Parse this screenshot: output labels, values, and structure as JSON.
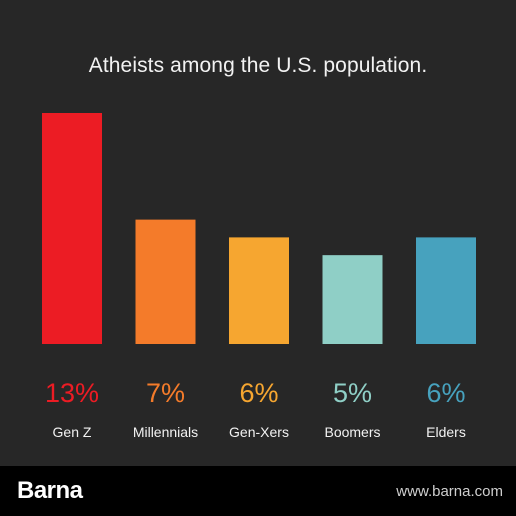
{
  "header": {
    "title": "Atheists among the U.S. population."
  },
  "footer": {
    "brand": "Barna",
    "url": "www.barna.com"
  },
  "chart_data": {
    "type": "bar",
    "title": "Atheists among the U.S. population.",
    "categories": [
      "Gen Z",
      "Millennials",
      "Gen-Xers",
      "Boomers",
      "Elders"
    ],
    "values": [
      13,
      7,
      6,
      5,
      6
    ],
    "value_labels": [
      "13%",
      "7%",
      "6%",
      "5%",
      "6%"
    ],
    "colors": [
      "#ec1c24",
      "#f47b2a",
      "#f6a630",
      "#8fcfc6",
      "#47a2be"
    ],
    "ylim": [
      0,
      13
    ],
    "grid": false
  }
}
